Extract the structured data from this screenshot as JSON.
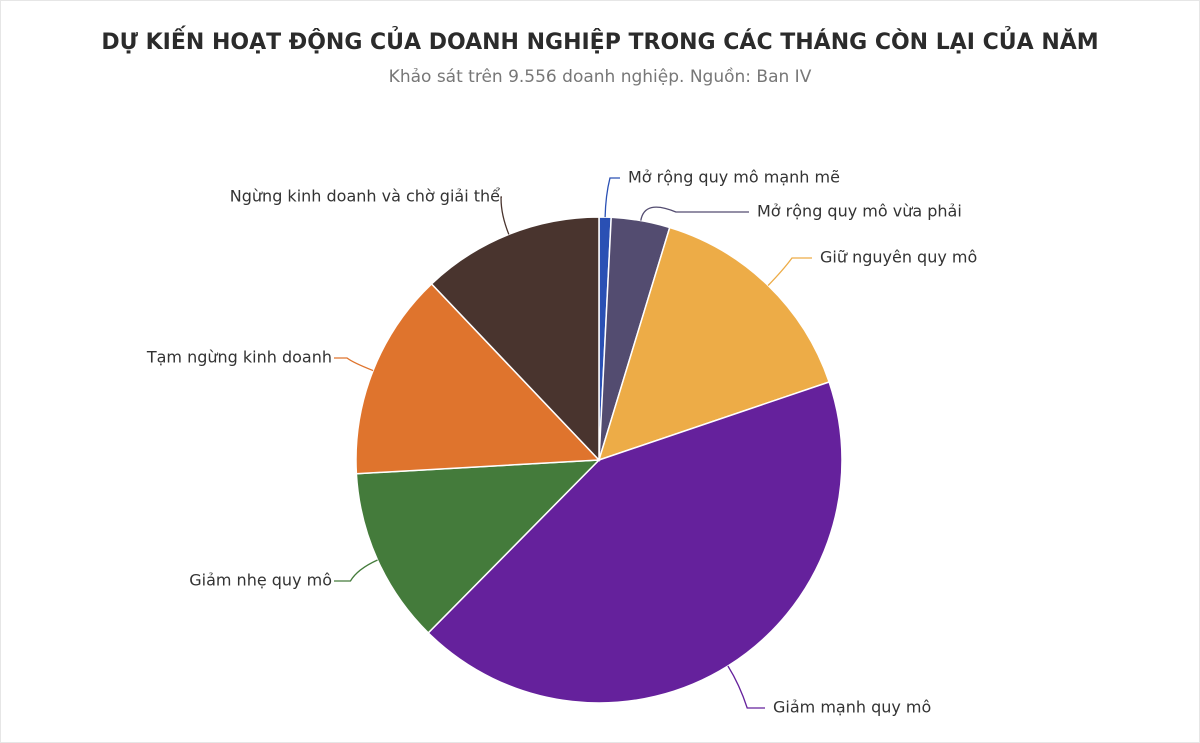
{
  "chart_data": {
    "type": "pie",
    "title": "DỰ KIẾN HOẠT ĐỘNG CỦA DOANH NGHIỆP TRONG CÁC THÁNG CÒN LẠI CỦA NĂM",
    "subtitle": "Khảo sát trên 9.556 doanh nghiệp. Nguồn: Ban IV",
    "categories": [
      "Mở rộng quy mô mạnh mẽ",
      "Mở rộng quy mô vừa phải",
      "Giữ nguyên quy mô",
      "Giảm mạnh quy mô",
      "Giảm nhẹ quy mô",
      "Tạm ngừng kinh doanh",
      "Ngừng kinh doanh và chờ giải thể"
    ],
    "values": [
      0.8,
      3.9,
      15.1,
      42.6,
      11.7,
      13.8,
      12.1
    ],
    "colors": [
      "#2a50b4",
      "#534c70",
      "#edac47",
      "#65219c",
      "#447b3b",
      "#df742d",
      "#49342e"
    ]
  }
}
